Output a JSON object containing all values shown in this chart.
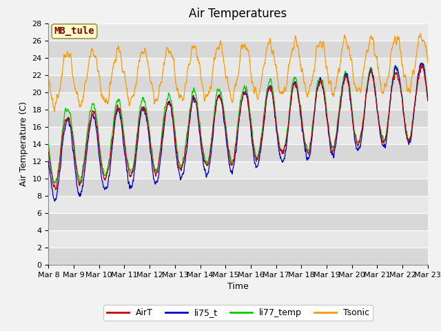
{
  "title": "Air Temperatures",
  "ylabel": "Air Temperature (C)",
  "xlabel": "Time",
  "annotation": "MB_tule",
  "ylim": [
    0,
    28
  ],
  "yticks": [
    0,
    2,
    4,
    6,
    8,
    10,
    12,
    14,
    16,
    18,
    20,
    22,
    24,
    26,
    28
  ],
  "x_tick_labels": [
    "Mar 8",
    "Mar 9",
    "Mar 10",
    "Mar 11",
    "Mar 12",
    "Mar 13",
    "Mar 14",
    "Mar 15",
    "Mar 16",
    "Mar 17",
    "Mar 18",
    "Mar 19",
    "Mar 20",
    "Mar 21",
    "Mar 22",
    "Mar 23"
  ],
  "colors": {
    "AirT": "#cc0000",
    "li75_t": "#0000cc",
    "li77_temp": "#00cc00",
    "Tsonic": "#ff9900"
  },
  "bg_light": "#e8e8e8",
  "bg_dark": "#d8d8d8",
  "title_fontsize": 12,
  "axis_label_fontsize": 9,
  "tick_fontsize": 8,
  "legend_fontsize": 9,
  "annotation_fontsize": 10,
  "figsize": [
    6.4,
    4.8
  ],
  "dpi": 100
}
